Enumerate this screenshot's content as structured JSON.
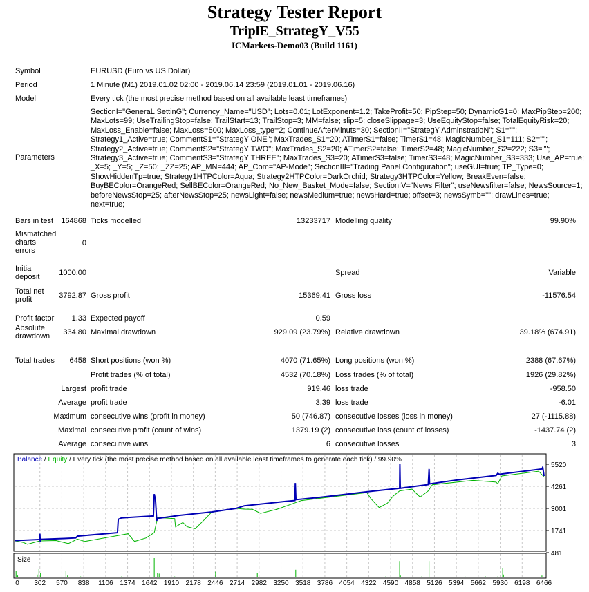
{
  "header": {
    "title": "Strategy Tester Report",
    "expert": "TriplE_StrategY_V55",
    "server": "ICMarkets-Demo03 (Build 1161)"
  },
  "info": {
    "symbol_label": "Symbol",
    "symbol": "EURUSD (Euro vs US Dollar)",
    "period_label": "Period",
    "period": "1 Minute (M1) 2019.01.02 02:00 - 2019.06.14 23:59 (2019.01.01 - 2019.06.16)",
    "model_label": "Model",
    "model": "Every tick (the most precise method based on all available least timeframes)",
    "parameters_label": "Parameters",
    "parameters_lines": [
      "SectionI=\"GeneraL SettinG\"; Currency_Name=\"USD\"; Lots=0.01; LotExponent=1.2; TakeProfit=50; PipStep=50; DynamicG1=0; MaxPipStep=200;",
      "MaxLots=99; UseTrailingStop=false; TrailStart=13; TrailStop=3; MM=false; slip=5; closeSlippage=3; UseEquityStop=false; TotalEquityRisk=20;",
      "MaxLoss_Enable=false; MaxLoss=500; MaxLoss_type=2; ContinueAfterMinuts=30; SectionII=\"StrategY AdminstratioN\"; S1=\"\";",
      "Strategy1_Active=true; CommentS1=\"StrategY ONE\"; MaxTrades_S1=20; ATimerS1=false; TimerS1=48; MagicNumber_S1=111; S2=\"\";",
      "Strategy2_Active=true; CommentS2=\"StrategY TWO\"; MaxTrades_S2=20; ATimerS2=false; TimerS2=48; MagicNumber_S2=222; S3=\"\";",
      "Strategy3_Active=true; CommentS3=\"StrategY THREE\"; MaxTrades_S3=20; ATimerS3=false; TimerS3=48; MagicNumber_S3=333; Use_AP=true;",
      "_X=5; _Y=5; _Z=50; _ZZ=25; AP_MN=444; AP_Com=\"AP-Mode\"; SectionIII=\"Trading Panel Configuration\"; useGUI=true; TP_Type=0;",
      "ShowHiddenTp=true; Strategy1HTPColor=Aqua; Strategy2HTPColor=DarkOrchid; Strategy3HTPColor=Yellow; BreakEven=false;",
      "BuyBEColor=OrangeRed; SellBEColor=OrangeRed; No_New_Basket_Mode=false; SectionIV=\"News Filter\"; useNewsfilter=false; NewsSource=1;",
      "beforeNewsStop=25; afterNewsStop=25; newsLight=false; newsMedium=true; newsHard=true; offset=3; newsSymb=\"\"; drawLines=true;",
      "next=true;"
    ]
  },
  "stats": [
    [
      "Bars in test",
      "164868",
      "Ticks modelled",
      "13233717",
      "Modelling quality",
      "99.90%"
    ],
    [
      "Mismatched charts errors",
      "0",
      "",
      "",
      "",
      ""
    ],
    [
      "Initial deposit",
      "1000.00",
      "",
      "",
      "Spread",
      "Variable"
    ],
    [
      "Total net profit",
      "3792.87",
      "Gross profit",
      "15369.41",
      "Gross loss",
      "-11576.54"
    ],
    [
      "Profit factor",
      "1.33",
      "Expected payoff",
      "0.59",
      "",
      ""
    ],
    [
      "Absolute drawdown",
      "334.80",
      "Maximal drawdown",
      "929.09 (23.79%)",
      "Relative drawdown",
      "39.18% (674.91)"
    ],
    [
      "Total trades",
      "6458",
      "Short positions (won %)",
      "4070 (71.65%)",
      "Long positions (won %)",
      "2388 (67.67%)"
    ],
    [
      "",
      "",
      "Profit trades (% of total)",
      "4532 (70.18%)",
      "Loss trades (% of total)",
      "1926 (29.82%)"
    ],
    [
      "Largest",
      "",
      "profit trade",
      "919.46",
      "loss trade",
      "-958.50"
    ],
    [
      "Average",
      "",
      "profit trade",
      "3.39",
      "loss trade",
      "-6.01"
    ],
    [
      "Maximum",
      "",
      "consecutive wins (profit in money)",
      "50 (746.87)",
      "consecutive losses (loss in money)",
      "27 (-1115.88)"
    ],
    [
      "Maximal",
      "",
      "consecutive profit (count of wins)",
      "1379.19 (2)",
      "consecutive loss (count of losses)",
      "-1437.74 (2)"
    ],
    [
      "Average",
      "",
      "consecutive wins",
      "6",
      "consecutive losses",
      "3"
    ]
  ],
  "chart_data": {
    "type": "line",
    "legend": {
      "balance": "Balance",
      "sep1": " / ",
      "equity": "Equity",
      "rest": " / Every tick (the most precise method based on all available least timeframes to generate each tick) / 99.90%"
    },
    "size_label": "Size",
    "colors": {
      "balance": "#0000b4",
      "equity": "#00b400",
      "size": "#00b400",
      "grid": "#c8c8c8"
    },
    "xlim": [
      0,
      6466
    ],
    "ylim": [
      481,
      5520
    ],
    "x_ticks": [
      0,
      302,
      570,
      838,
      1106,
      1374,
      1642,
      1910,
      2178,
      2446,
      2714,
      2982,
      3250,
      3518,
      3786,
      4054,
      4322,
      4590,
      4858,
      5126,
      5394,
      5662,
      5930,
      6198,
      6466
    ],
    "y_ticks": [
      5520,
      4261,
      3001,
      1741,
      481
    ],
    "grid": true,
    "series": [
      {
        "name": "Balance",
        "points": [
          [
            0,
            1170
          ],
          [
            300,
            1230
          ],
          [
            302,
            1560
          ],
          [
            306,
            1100
          ],
          [
            310,
            1240
          ],
          [
            600,
            1290
          ],
          [
            740,
            1320
          ],
          [
            760,
            1420
          ],
          [
            1100,
            1560
          ],
          [
            1250,
            1620
          ],
          [
            1260,
            2380
          ],
          [
            1300,
            2460
          ],
          [
            1500,
            2520
          ],
          [
            1690,
            2570
          ],
          [
            1700,
            3820
          ],
          [
            1715,
            3500
          ],
          [
            1730,
            2300
          ],
          [
            1740,
            2430
          ],
          [
            2000,
            2600
          ],
          [
            2400,
            2800
          ],
          [
            2700,
            3000
          ],
          [
            2800,
            3150
          ],
          [
            3300,
            3400
          ],
          [
            3420,
            3450
          ],
          [
            3425,
            4450
          ],
          [
            3432,
            3500
          ],
          [
            3700,
            3620
          ],
          [
            4300,
            3950
          ],
          [
            4700,
            4150
          ],
          [
            4703,
            5560
          ],
          [
            4708,
            4150
          ],
          [
            5050,
            4360
          ],
          [
            5060,
            5250
          ],
          [
            5066,
            4400
          ],
          [
            5400,
            4620
          ],
          [
            5880,
            4880
          ],
          [
            5900,
            5000
          ],
          [
            5920,
            4950
          ],
          [
            6440,
            5250
          ],
          [
            6450,
            5350
          ],
          [
            6466,
            4850
          ]
        ]
      },
      {
        "name": "Equity",
        "points": [
          [
            0,
            1150
          ],
          [
            100,
            1060
          ],
          [
            150,
            960
          ],
          [
            300,
            1150
          ],
          [
            500,
            1170
          ],
          [
            650,
            1000
          ],
          [
            760,
            1250
          ],
          [
            850,
            1120
          ],
          [
            1250,
            1450
          ],
          [
            1380,
            1560
          ],
          [
            1440,
            1220
          ],
          [
            1460,
            1120
          ],
          [
            1600,
            1320
          ],
          [
            1700,
            1620
          ],
          [
            1740,
            2480
          ],
          [
            1950,
            2420
          ],
          [
            1960,
            1950
          ],
          [
            2050,
            2200
          ],
          [
            2100,
            1960
          ],
          [
            2200,
            1840
          ],
          [
            2300,
            2300
          ],
          [
            2400,
            2780
          ],
          [
            2700,
            3000
          ],
          [
            2800,
            2960
          ],
          [
            2900,
            2950
          ],
          [
            3000,
            2720
          ],
          [
            3200,
            2950
          ],
          [
            3500,
            3450
          ],
          [
            4300,
            3900
          ],
          [
            4350,
            3550
          ],
          [
            4450,
            3050
          ],
          [
            4550,
            3300
          ],
          [
            4620,
            3700
          ],
          [
            4700,
            4000
          ],
          [
            4850,
            4100
          ],
          [
            4950,
            3650
          ],
          [
            5050,
            4000
          ],
          [
            5100,
            4350
          ],
          [
            5600,
            4600
          ],
          [
            5880,
            4500
          ],
          [
            5900,
            4400
          ],
          [
            5950,
            4850
          ],
          [
            6400,
            5120
          ],
          [
            6466,
            4800
          ]
        ]
      }
    ],
    "size_bars": [
      [
        10,
        0.35
      ],
      [
        30,
        0.1
      ],
      [
        270,
        0.15
      ],
      [
        290,
        0.45
      ],
      [
        310,
        0.25
      ],
      [
        620,
        0.35
      ],
      [
        640,
        0.1
      ],
      [
        800,
        0.05
      ],
      [
        1300,
        0.05
      ],
      [
        1700,
        1.0
      ],
      [
        1720,
        0.6
      ],
      [
        1740,
        0.25
      ],
      [
        1760,
        0.2
      ],
      [
        1950,
        0.05
      ],
      [
        2450,
        0.3
      ],
      [
        2960,
        0.25
      ],
      [
        3430,
        0.4
      ],
      [
        4530,
        0.05
      ],
      [
        4700,
        0.85
      ],
      [
        4710,
        0.1
      ],
      [
        4970,
        0.05
      ],
      [
        5060,
        0.85
      ],
      [
        5500,
        0.05
      ],
      [
        5750,
        0.05
      ],
      [
        5900,
        0.05
      ],
      [
        5960,
        0.5
      ],
      [
        5970,
        0.15
      ],
      [
        6440,
        0.1
      ]
    ]
  }
}
